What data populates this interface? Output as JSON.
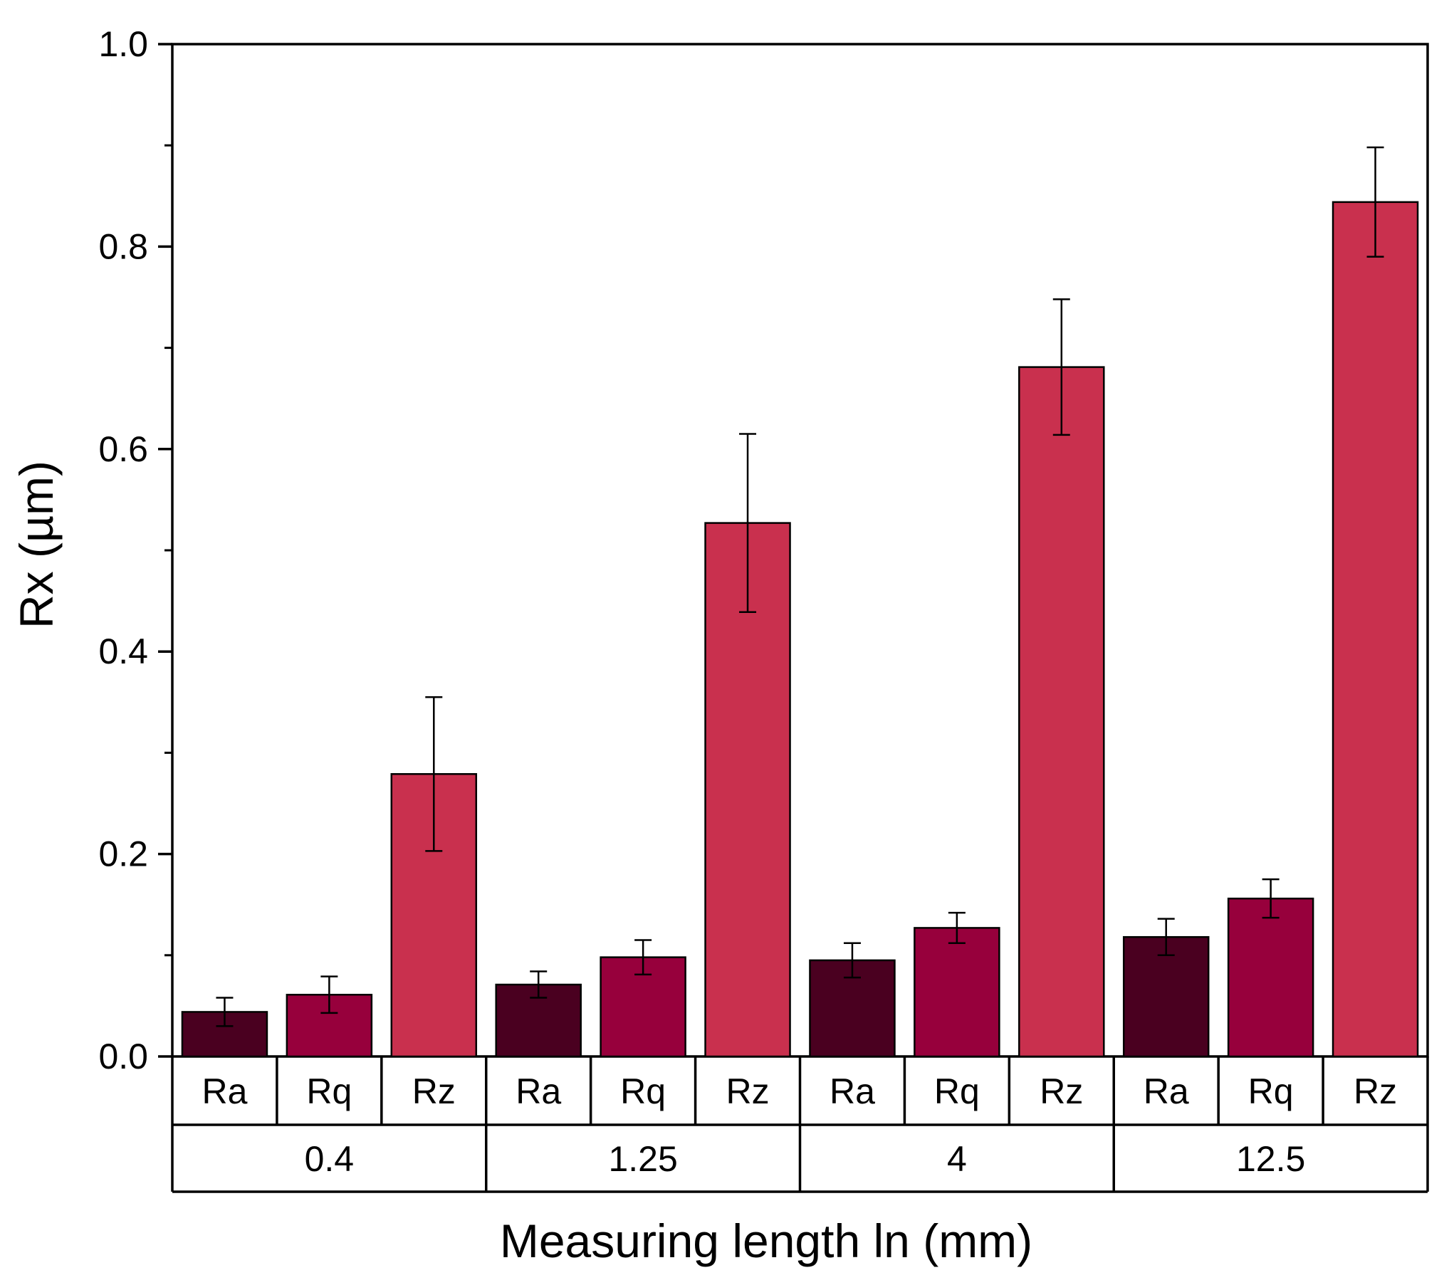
{
  "chart_data": {
    "type": "bar",
    "xlabel": "Measuring length ln (mm)",
    "ylabel": "Rx (µm)",
    "ylim": [
      0.0,
      1.0
    ],
    "yticks": [
      0.0,
      0.2,
      0.4,
      0.6,
      0.8,
      1.0
    ],
    "ytick_labels": [
      "0.0",
      "0.2",
      "0.4",
      "0.6",
      "0.8",
      "1.0"
    ],
    "groups": [
      "0.4",
      "1.25",
      "4",
      "12.5"
    ],
    "series": [
      {
        "name": "Ra",
        "color": "#4a0020",
        "values": [
          0.044,
          0.071,
          0.095,
          0.118
        ],
        "errors": [
          0.014,
          0.013,
          0.017,
          0.018
        ]
      },
      {
        "name": "Rq",
        "color": "#97003c",
        "values": [
          0.061,
          0.098,
          0.127,
          0.156
        ],
        "errors": [
          0.018,
          0.017,
          0.015,
          0.019
        ]
      },
      {
        "name": "Rz",
        "color": "#c9304e",
        "values": [
          0.279,
          0.527,
          0.681,
          0.844
        ],
        "errors": [
          0.076,
          0.088,
          0.067,
          0.054
        ]
      }
    ]
  }
}
